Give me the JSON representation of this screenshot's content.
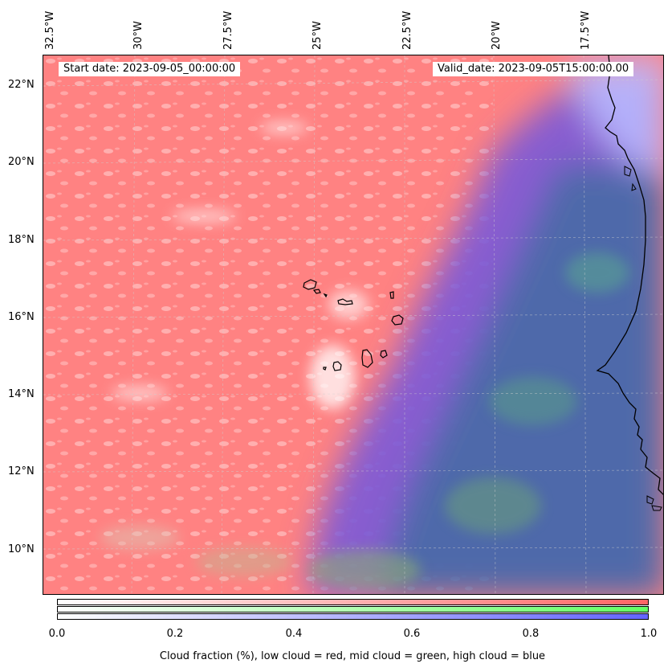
{
  "map": {
    "start_label": "Start date: 2023-09-05_00:00:00",
    "valid_label": "Valid_date: 2023-09-05T15:00:00.00",
    "lon_ticks": [
      "32.5°W",
      "30°W",
      "27.5°W",
      "25°W",
      "22.5°W",
      "20°W",
      "17.5°W"
    ],
    "lat_ticks": [
      "22°N",
      "20°N",
      "18°N",
      "16°N",
      "14°N",
      "12°N",
      "10°N"
    ],
    "extent": {
      "lon_min": -32.6,
      "lon_max": -15.2,
      "lat_min": 8.9,
      "lat_max": 22.8
    },
    "colors": {
      "low_cloud": "#ff8080",
      "mid_cloud": "#80ff80",
      "high_cloud": "#6a6ae6",
      "deep_overlap": "#4a6aa8"
    }
  },
  "colorbar": {
    "ticks": [
      "0.0",
      "0.2",
      "0.4",
      "0.6",
      "0.8",
      "1.0"
    ],
    "caption": "Cloud fraction (%), low cloud = red, mid cloud = green, high cloud = blue",
    "rows": [
      {
        "name": "low",
        "color": "#ff6464"
      },
      {
        "name": "mid",
        "color": "#64ff64"
      },
      {
        "name": "high",
        "color": "#6464ff"
      }
    ]
  }
}
